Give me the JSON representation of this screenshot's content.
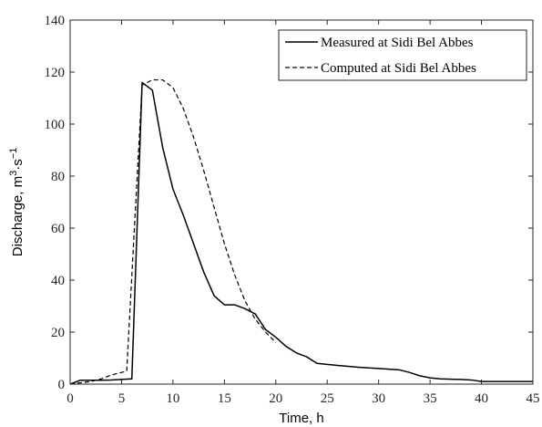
{
  "chart_data": {
    "type": "line",
    "xlabel": "Time, h",
    "ylabel_main": "Discharge, m",
    "ylabel_sup1": "3",
    "ylabel_dot": "·",
    "ylabel_s": "s",
    "ylabel_sup2": "−1",
    "xlim": [
      0,
      45
    ],
    "ylim": [
      0,
      140
    ],
    "xticks": [
      0,
      5,
      10,
      15,
      20,
      25,
      30,
      35,
      40,
      45
    ],
    "yticks": [
      0,
      20,
      40,
      60,
      80,
      100,
      120,
      140
    ],
    "grid": false,
    "legend_position": "top-right",
    "series": [
      {
        "name": "Measured at Sidi Bel Abbes",
        "style": "solid",
        "color": "#000000",
        "points": [
          [
            0,
            0
          ],
          [
            1,
            1.5
          ],
          [
            2,
            1.5
          ],
          [
            3,
            1.5
          ],
          [
            4,
            1.6
          ],
          [
            5,
            1.8
          ],
          [
            6,
            2
          ],
          [
            7,
            116
          ],
          [
            8,
            113
          ],
          [
            9,
            91
          ],
          [
            10,
            75
          ],
          [
            11,
            65
          ],
          [
            12,
            54
          ],
          [
            13,
            43
          ],
          [
            14,
            34
          ],
          [
            15,
            30.5
          ],
          [
            16,
            30.5
          ],
          [
            17,
            29
          ],
          [
            18,
            27
          ],
          [
            19,
            21
          ],
          [
            20,
            18
          ],
          [
            21,
            14.5
          ],
          [
            22,
            12
          ],
          [
            23,
            10.5
          ],
          [
            24,
            8
          ],
          [
            26,
            7.2
          ],
          [
            28,
            6.5
          ],
          [
            30,
            6
          ],
          [
            32,
            5.5
          ],
          [
            33,
            4.5
          ],
          [
            34,
            3.2
          ],
          [
            35,
            2.4
          ],
          [
            36,
            2
          ],
          [
            37,
            1.9
          ],
          [
            38,
            1.8
          ],
          [
            39,
            1.6
          ],
          [
            40,
            1
          ],
          [
            45,
            1
          ]
        ]
      },
      {
        "name": "Computed at Sidi Bel Abbes",
        "style": "dashed",
        "color": "#000000",
        "points": [
          [
            0,
            0
          ],
          [
            1,
            0.5
          ],
          [
            2,
            1
          ],
          [
            3,
            2
          ],
          [
            4,
            3.5
          ],
          [
            5,
            4.5
          ],
          [
            5.5,
            5
          ],
          [
            7,
            115
          ],
          [
            8,
            117
          ],
          [
            9,
            117
          ],
          [
            10,
            114
          ],
          [
            11,
            106
          ],
          [
            12,
            95
          ],
          [
            13,
            82
          ],
          [
            14,
            68
          ],
          [
            15,
            54
          ],
          [
            16,
            42
          ],
          [
            17,
            32
          ],
          [
            18,
            25
          ],
          [
            19,
            20
          ],
          [
            20,
            16
          ]
        ]
      }
    ]
  }
}
